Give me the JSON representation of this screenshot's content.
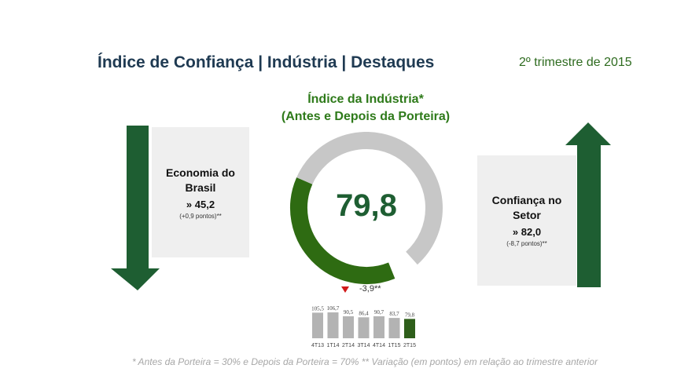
{
  "header": {
    "title": "Índice de Confiança | Indústria | Destaques",
    "period": "2º trimestre de 2015"
  },
  "gauge": {
    "title_line1": "Índice da Indústria*",
    "title_line2": "(Antes e Depois da Porteira)",
    "value_label": "79,8",
    "value": 79.8,
    "max": 200,
    "variation": "-3,9**"
  },
  "left_panel": {
    "name_line1": "Economia do",
    "name_line2": "Brasil",
    "value": "» 45,2",
    "variation": "(+0,9 pontos)**",
    "direction": "down"
  },
  "right_panel": {
    "name_line1": "Confiança no",
    "name_line2": "Setor",
    "value": "» 82,0",
    "variation": "(-8,7 pontos)**",
    "direction": "up"
  },
  "colors": {
    "dark_green": "#1e5e32",
    "gauge_green": "#2e6b12",
    "gauge_grey": "#c7c7c7",
    "bar_grey": "#b3b3b3",
    "bar_highlight": "#2e5e1a",
    "down_marker": "#d11a1a"
  },
  "chart_data": {
    "type": "bar",
    "categories": [
      "4T13",
      "1T14",
      "2T14",
      "3T14",
      "4T14",
      "1T15",
      "2T15"
    ],
    "values": [
      105.5,
      106.7,
      90.5,
      86.4,
      90.7,
      83.7,
      79.8
    ],
    "value_labels": [
      "105,5",
      "106,7",
      "90,5",
      "86,4",
      "90,7",
      "83,7",
      "79,8"
    ],
    "highlight_index": 6,
    "ylim": [
      0,
      110
    ]
  },
  "footnote": "* Antes da Porteira = 30% e Depois da Porteira = 70%   ** Variação (em pontos) em relação ao trimestre anterior"
}
